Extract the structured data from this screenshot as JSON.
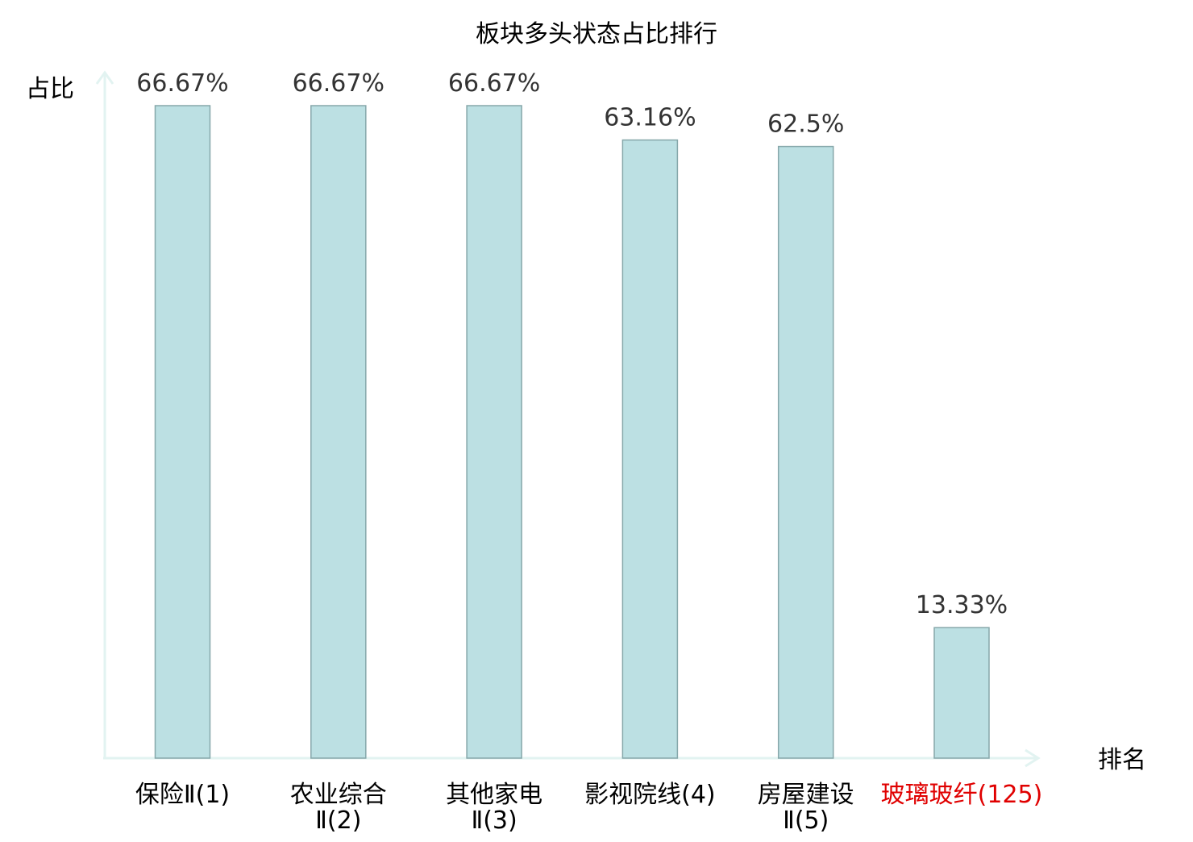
{
  "chart_data": {
    "type": "bar",
    "title": "板块多头状态占比排行",
    "ylabel": "占比",
    "xlabel": "排名",
    "ylim": [
      0,
      80
    ],
    "grid": false,
    "categories": [
      [
        "保险Ⅱ(1)"
      ],
      [
        "农业综合",
        "Ⅱ(2)"
      ],
      [
        "其他家电",
        "Ⅱ(3)"
      ],
      [
        "影视院线(4)"
      ],
      [
        "房屋建设",
        "Ⅱ(5)"
      ],
      [
        "玻璃玻纤(125)"
      ]
    ],
    "highlight_index": 5,
    "values": [
      66.67,
      66.67,
      66.67,
      63.16,
      62.5,
      13.33
    ],
    "value_labels": [
      "66.67%",
      "66.67%",
      "66.67%",
      "63.16%",
      "62.5%",
      "13.33%"
    ]
  },
  "colors": {
    "bar_fill": "#bce0e3",
    "bar_stroke": "#86a7aa",
    "axis": "#e2f3f1",
    "label_text": "#333333",
    "highlight_text": "#e00000",
    "title_text": "#000000"
  }
}
